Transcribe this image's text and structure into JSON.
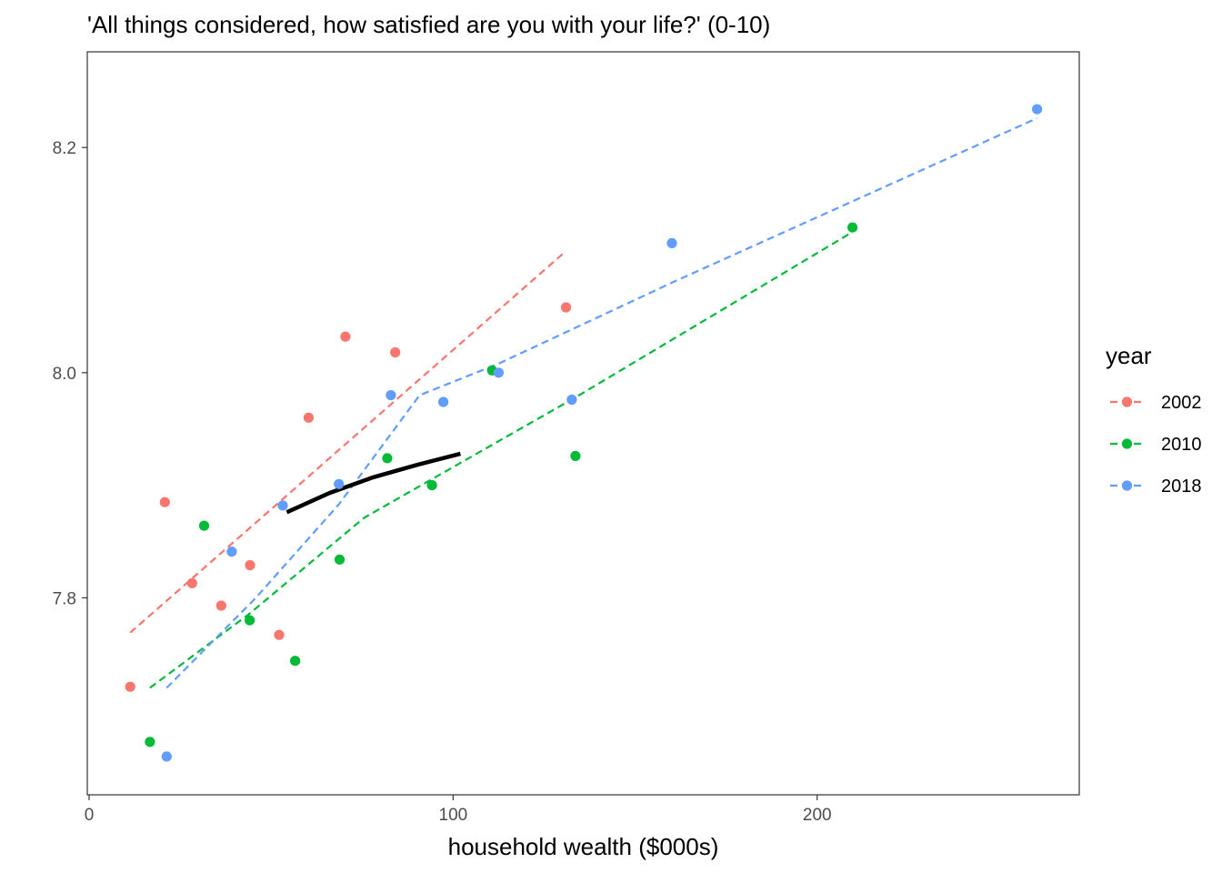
{
  "chart_data": {
    "type": "scatter",
    "title": "'All things considered, how satisfied are you with your life?' (0-10)",
    "xlabel": "household wealth ($000s)",
    "ylabel": "",
    "xlim": [
      -0.5,
      272
    ],
    "ylim": [
      7.625,
      8.285
    ],
    "x_ticks": [
      0,
      100,
      200
    ],
    "x_tick_labels": [
      "0",
      "100",
      "200"
    ],
    "y_ticks": [
      7.8,
      8.0,
      8.2
    ],
    "y_tick_labels": [
      "7.8",
      "8.0",
      "8.2"
    ],
    "grid": false,
    "legend": {
      "title": "year",
      "position": "right"
    },
    "series": [
      {
        "name": "2002",
        "color": "#F8766D",
        "points": [
          [
            11.3,
            7.721
          ],
          [
            20.8,
            7.885
          ],
          [
            28.3,
            7.813
          ],
          [
            36.3,
            7.793
          ],
          [
            44.2,
            7.829
          ],
          [
            52.2,
            7.767
          ],
          [
            60.3,
            7.96
          ],
          [
            70.4,
            8.032
          ],
          [
            84.1,
            8.018
          ],
          [
            131.0,
            8.058
          ]
        ],
        "trend": [
          [
            11.3,
            7.769
          ],
          [
            131.0,
            8.108
          ]
        ]
      },
      {
        "name": "2010",
        "color": "#00BA38",
        "points": [
          [
            16.7,
            7.672
          ],
          [
            31.6,
            7.864
          ],
          [
            44.1,
            7.78
          ],
          [
            56.6,
            7.744
          ],
          [
            68.8,
            7.834
          ],
          [
            81.9,
            7.924
          ],
          [
            94.2,
            7.9
          ],
          [
            110.7,
            8.002
          ],
          [
            133.6,
            7.926
          ],
          [
            209.7,
            8.129
          ]
        ],
        "trend": [
          [
            16.7,
            7.72
          ],
          [
            44.1,
            7.786
          ],
          [
            75.5,
            7.871
          ],
          [
            133.6,
            7.978
          ],
          [
            209.7,
            8.125
          ]
        ]
      },
      {
        "name": "2018",
        "color": "#619CFF",
        "points": [
          [
            21.3,
            7.659
          ],
          [
            39.2,
            7.841
          ],
          [
            53.2,
            7.882
          ],
          [
            68.6,
            7.901
          ],
          [
            82.9,
            7.98
          ],
          [
            97.3,
            7.974
          ],
          [
            112.5,
            8.0
          ],
          [
            132.6,
            7.976
          ],
          [
            160.1,
            8.115
          ],
          [
            260.4,
            8.234
          ]
        ],
        "trend": [
          [
            21.3,
            7.72
          ],
          [
            45.8,
            7.8
          ],
          [
            68.6,
            7.883
          ],
          [
            90.8,
            7.98
          ],
          [
            112.5,
            8.008
          ],
          [
            160.1,
            8.08
          ],
          [
            260.4,
            8.226
          ]
        ]
      }
    ],
    "overall_fit": {
      "color": "#000000",
      "points": [
        [
          54.3,
          7.876
        ],
        [
          66.0,
          7.893
        ],
        [
          78.0,
          7.907
        ],
        [
          90.0,
          7.918
        ],
        [
          102.0,
          7.928
        ]
      ]
    }
  }
}
